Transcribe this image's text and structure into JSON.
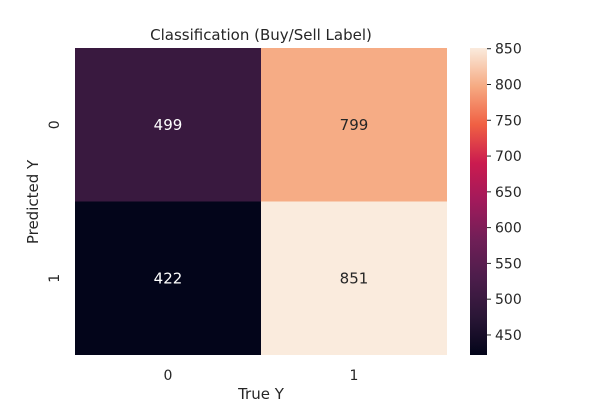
{
  "chart_data": {
    "type": "heatmap",
    "title": "Classification (Buy/Sell Label)",
    "xlabel": "True Y",
    "ylabel": "Predicted Y",
    "x_categories": [
      "0",
      "1"
    ],
    "y_categories": [
      "0",
      "1"
    ],
    "values": [
      [
        499,
        799
      ],
      [
        422,
        851
      ]
    ],
    "colorbar": {
      "range": [
        422,
        851
      ],
      "ticks": [
        450,
        500,
        550,
        600,
        650,
        700,
        750,
        800,
        850
      ],
      "tick_labels": [
        "450",
        "500",
        "550",
        "600",
        "650",
        "700",
        "750",
        "800",
        "850"
      ]
    }
  }
}
